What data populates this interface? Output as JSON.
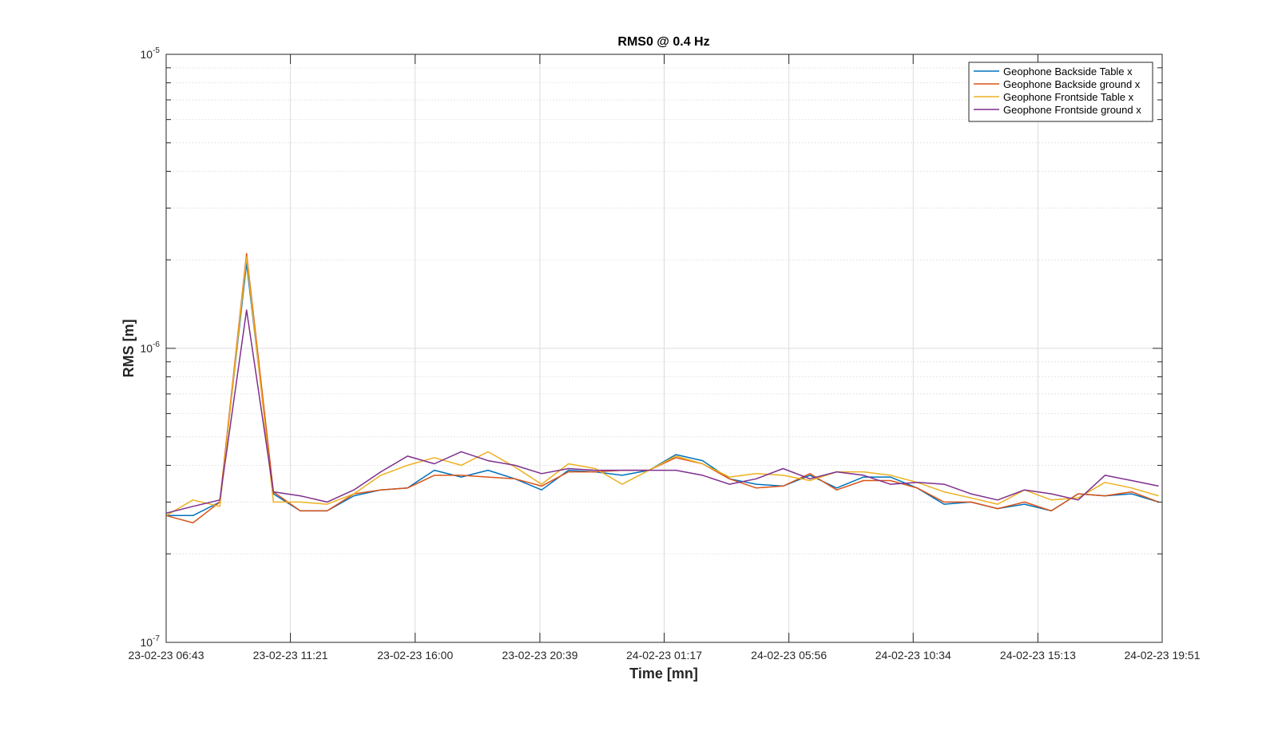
{
  "chart_data": {
    "type": "line",
    "title": "RMS0 @ 0.4 Hz",
    "xlabel": "Time [mn]",
    "ylabel": "RMS [m]",
    "y_scale": "log",
    "ylim": [
      1e-07,
      1e-05
    ],
    "y_ticks": [
      {
        "value": 1e-07,
        "base": "10",
        "exp": "-7"
      },
      {
        "value": 1e-06,
        "base": "10",
        "exp": "-6"
      },
      {
        "value": 1e-05,
        "base": "10",
        "exp": "-5"
      }
    ],
    "xlim": [
      "23-02-23 06:43",
      "24-02-23 19:51"
    ],
    "x_ticks": [
      "23-02-23 06:43",
      "23-02-23 11:21",
      "23-02-23 16:00",
      "23-02-23 20:39",
      "24-02-23 01:17",
      "24-02-23 05:56",
      "24-02-23 10:34",
      "24-02-23 15:13",
      "24-02-23 19:51"
    ],
    "x": [
      "23-02-23 06:43",
      "23-02-23 07:43",
      "23-02-23 08:43",
      "23-02-23 09:43",
      "23-02-23 10:43",
      "23-02-23 11:43",
      "23-02-23 12:43",
      "23-02-23 13:43",
      "23-02-23 14:43",
      "23-02-23 15:43",
      "23-02-23 16:43",
      "23-02-23 17:43",
      "23-02-23 18:43",
      "23-02-23 19:43",
      "23-02-23 20:43",
      "23-02-23 21:43",
      "23-02-23 22:43",
      "23-02-23 23:43",
      "24-02-23 00:43",
      "24-02-23 01:43",
      "24-02-23 02:43",
      "24-02-23 03:43",
      "24-02-23 04:43",
      "24-02-23 05:43",
      "24-02-23 06:43",
      "24-02-23 07:43",
      "24-02-23 08:43",
      "24-02-23 09:43",
      "24-02-23 10:43",
      "24-02-23 11:43",
      "24-02-23 12:43",
      "24-02-23 13:43",
      "24-02-23 14:43",
      "24-02-23 15:43",
      "24-02-23 16:43",
      "24-02-23 17:43",
      "24-02-23 18:43",
      "24-02-23 19:43"
    ],
    "grid": true,
    "legend_position": "top-right",
    "series": [
      {
        "name": "Geophone Backside Table x",
        "color": "#0072BD",
        "values": [
          2.7e-07,
          2.7e-07,
          3e-07,
          1.95e-06,
          3.2e-07,
          2.8e-07,
          2.8e-07,
          3.15e-07,
          3.3e-07,
          3.35e-07,
          3.85e-07,
          3.65e-07,
          3.85e-07,
          3.6e-07,
          3.3e-07,
          3.85e-07,
          3.8e-07,
          3.7e-07,
          3.85e-07,
          4.35e-07,
          4.15e-07,
          3.6e-07,
          3.45e-07,
          3.4e-07,
          3.7e-07,
          3.35e-07,
          3.65e-07,
          3.65e-07,
          3.35e-07,
          2.95e-07,
          3e-07,
          2.85e-07,
          2.95e-07,
          2.8e-07,
          3.2e-07,
          3.15e-07,
          3.2e-07,
          3e-07
        ]
      },
      {
        "name": "Geophone Backside ground x",
        "color": "#D95319",
        "values": [
          2.7e-07,
          2.55e-07,
          3e-07,
          2.1e-06,
          3.25e-07,
          2.8e-07,
          2.8e-07,
          3.2e-07,
          3.3e-07,
          3.35e-07,
          3.7e-07,
          3.7e-07,
          3.65e-07,
          3.6e-07,
          3.4e-07,
          3.8e-07,
          3.8e-07,
          3.85e-07,
          3.85e-07,
          4.25e-07,
          4.05e-07,
          3.6e-07,
          3.35e-07,
          3.4e-07,
          3.75e-07,
          3.3e-07,
          3.55e-07,
          3.55e-07,
          3.35e-07,
          3e-07,
          3e-07,
          2.85e-07,
          3e-07,
          2.8e-07,
          3.2e-07,
          3.15e-07,
          3.25e-07,
          3e-07
        ]
      },
      {
        "name": "Geophone Frontside Table x",
        "color": "#EDB120",
        "values": [
          2.7e-07,
          3.05e-07,
          2.9e-07,
          2.05e-06,
          3e-07,
          3e-07,
          2.95e-07,
          3.2e-07,
          3.7e-07,
          4e-07,
          4.25e-07,
          4e-07,
          4.45e-07,
          3.95e-07,
          3.45e-07,
          4.05e-07,
          3.9e-07,
          3.45e-07,
          3.85e-07,
          4.3e-07,
          4.05e-07,
          3.65e-07,
          3.75e-07,
          3.7e-07,
          3.55e-07,
          3.8e-07,
          3.8e-07,
          3.7e-07,
          3.5e-07,
          3.25e-07,
          3.1e-07,
          2.95e-07,
          3.3e-07,
          3.05e-07,
          3.1e-07,
          3.5e-07,
          3.35e-07,
          3.15e-07
        ]
      },
      {
        "name": "Geophone Frontside ground x",
        "color": "#7E2F8E",
        "values": [
          2.75e-07,
          2.9e-07,
          3.05e-07,
          1.35e-06,
          3.25e-07,
          3.15e-07,
          3e-07,
          3.3e-07,
          3.8e-07,
          4.3e-07,
          4.05e-07,
          4.45e-07,
          4.15e-07,
          4e-07,
          3.75e-07,
          3.9e-07,
          3.85e-07,
          3.85e-07,
          3.85e-07,
          3.85e-07,
          3.7e-07,
          3.45e-07,
          3.6e-07,
          3.9e-07,
          3.6e-07,
          3.8e-07,
          3.7e-07,
          3.45e-07,
          3.5e-07,
          3.45e-07,
          3.2e-07,
          3.05e-07,
          3.3e-07,
          3.2e-07,
          3.05e-07,
          3.7e-07,
          3.55e-07,
          3.4e-07
        ]
      }
    ]
  }
}
